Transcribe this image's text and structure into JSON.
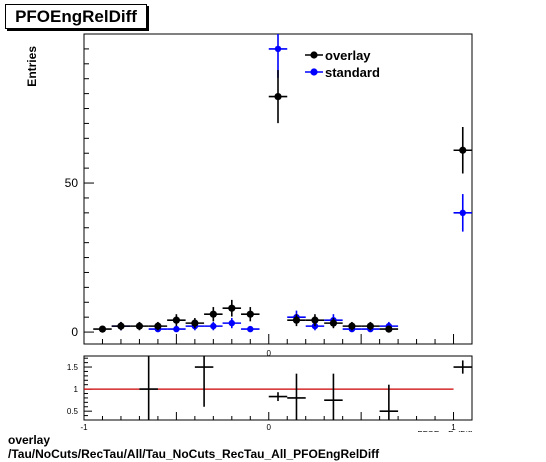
{
  "title": "PFOEngRelDiff",
  "caption": {
    "line1": "overlay",
    "line2": "/Tau/NoCuts/RecTau/All/Tau_NoCuts_RecTau_All_PFOEngRelDiff"
  },
  "colors": {
    "overlay": "#000000",
    "standard": "#0000ff",
    "ratio_line": "#cc0000",
    "frame": "#000000"
  },
  "chart_data": [
    {
      "type": "scatter",
      "ylabel": "Entries",
      "xlim": [
        -1,
        1.1
      ],
      "ylim": [
        -4,
        100
      ],
      "yticks_labeled": [
        0,
        50
      ],
      "xticks_labeled": [
        0
      ],
      "legend": {
        "placement": "top-center",
        "entries": [
          "overlay",
          "standard"
        ]
      },
      "bin_halfwidth": 0.05,
      "series": [
        {
          "name": "overlay",
          "x": [
            -0.9,
            -0.8,
            -0.7,
            -0.6,
            -0.5,
            -0.4,
            -0.3,
            -0.2,
            -0.1,
            0.05,
            0.15,
            0.25,
            0.35,
            0.45,
            0.55,
            0.65,
            1.05
          ],
          "y": [
            1,
            2,
            2,
            2,
            4,
            3,
            6,
            8,
            6,
            79,
            4,
            4,
            3,
            2,
            2,
            1,
            61
          ],
          "yerr": [
            1,
            1.4,
            1.4,
            1.4,
            2,
            1.7,
            2.4,
            2.8,
            2.4,
            8.9,
            2,
            2,
            1.7,
            1.4,
            1.4,
            1,
            7.8
          ]
        },
        {
          "name": "standard",
          "x": [
            -0.8,
            -0.6,
            -0.5,
            -0.4,
            -0.3,
            -0.2,
            -0.1,
            0.05,
            0.15,
            0.25,
            0.35,
            0.45,
            0.55,
            0.65,
            1.05
          ],
          "y": [
            2,
            1,
            1,
            2,
            2,
            3,
            1,
            95,
            5,
            2,
            4,
            1,
            1,
            2,
            40
          ],
          "yerr": [
            1.4,
            1,
            1,
            1.4,
            1.4,
            1.7,
            1,
            9.7,
            2.2,
            1.4,
            2,
            1,
            1,
            1.4,
            6.3
          ]
        }
      ]
    },
    {
      "type": "scatter",
      "xlabel": "PFOEngRelDiff",
      "xlim": [
        -1,
        1.1
      ],
      "ylim": [
        0.3,
        1.75
      ],
      "yticks_labeled": [
        0.5,
        1,
        1.5
      ],
      "xticks_labeled": [
        -1,
        0,
        1
      ],
      "reference_line": 1,
      "bin_halfwidth": 0.05,
      "series": [
        {
          "name": "ratio",
          "x": [
            -0.65,
            -0.35,
            0.05,
            0.15,
            0.35,
            0.65,
            1.05
          ],
          "y": [
            1.0,
            1.5,
            0.83,
            0.8,
            0.75,
            0.5,
            1.5
          ],
          "yerr": [
            0.9,
            0.9,
            0.1,
            0.55,
            0.6,
            0.6,
            0.15
          ]
        }
      ]
    }
  ]
}
